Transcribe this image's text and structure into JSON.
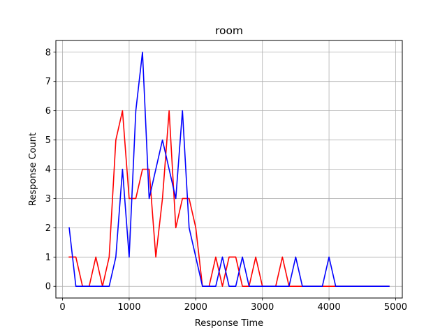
{
  "chart_data": {
    "type": "line",
    "title": "room",
    "xlabel": "Response Time",
    "ylabel": "Response Count",
    "xlim": [
      -100,
      5100
    ],
    "ylim": [
      -0.4,
      8.4
    ],
    "xticks": [
      0,
      1000,
      2000,
      3000,
      4000,
      5000
    ],
    "xtick_labels": [
      "0",
      "1000",
      "2000",
      "3000",
      "4000",
      "5000"
    ],
    "yticks": [
      0,
      1,
      2,
      3,
      4,
      5,
      6,
      7,
      8
    ],
    "ytick_labels": [
      "0",
      "1",
      "2",
      "3",
      "4",
      "5",
      "6",
      "7",
      "8"
    ],
    "grid": true,
    "x": [
      100,
      200,
      300,
      400,
      500,
      600,
      700,
      800,
      900,
      1000,
      1100,
      1200,
      1300,
      1400,
      1500,
      1600,
      1700,
      1800,
      1900,
      2000,
      2100,
      2200,
      2300,
      2400,
      2500,
      2600,
      2700,
      2800,
      2900,
      3000,
      3100,
      3200,
      3300,
      3400,
      3500,
      3600,
      3700,
      3800,
      3900,
      4000,
      4100,
      4200,
      4300,
      4400,
      4500,
      4600,
      4700,
      4800,
      4900
    ],
    "series": [
      {
        "color": "#ff0000",
        "values": [
          1,
          1,
          0,
          0,
          1,
          0,
          1,
          5,
          6,
          3,
          3,
          4,
          4,
          1,
          3,
          6,
          2,
          3,
          3,
          2,
          0,
          0,
          1,
          0,
          1,
          1,
          0,
          0,
          1,
          0,
          0,
          0,
          1,
          0,
          0,
          0,
          0,
          0,
          0,
          0,
          0,
          0,
          0,
          0,
          0,
          0,
          0,
          0,
          0
        ]
      },
      {
        "color": "#0000ff",
        "values": [
          2,
          0,
          0,
          0,
          0,
          0,
          0,
          1,
          4,
          1,
          6,
          8,
          3,
          4,
          5,
          4,
          3,
          6,
          2,
          1,
          0,
          0,
          0,
          1,
          0,
          0,
          1,
          0,
          0,
          0,
          0,
          0,
          0,
          0,
          1,
          0,
          0,
          0,
          0,
          1,
          0,
          0,
          0,
          0,
          0,
          0,
          0,
          0,
          0
        ]
      }
    ]
  }
}
